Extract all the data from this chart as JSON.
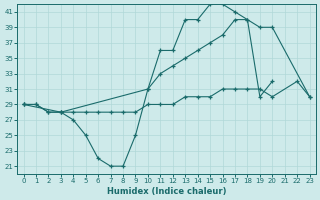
{
  "xlabel": "Humidex (Indice chaleur)",
  "bg_color": "#ceeaea",
  "line_color": "#1a6b6b",
  "grid_color": "#b0d8d8",
  "xlim": [
    -0.5,
    23.5
  ],
  "ylim": [
    20,
    42
  ],
  "yticks": [
    21,
    23,
    25,
    27,
    29,
    31,
    33,
    35,
    37,
    39,
    41
  ],
  "xticks": [
    0,
    1,
    2,
    3,
    4,
    5,
    6,
    7,
    8,
    9,
    10,
    11,
    12,
    13,
    14,
    15,
    16,
    17,
    18,
    19,
    20,
    21,
    22,
    23
  ],
  "curve1_x": [
    0,
    1,
    2,
    3,
    4,
    5,
    6,
    7,
    8,
    9,
    10,
    11,
    12,
    13,
    14,
    15,
    16,
    17,
    18,
    19,
    20
  ],
  "curve1_y": [
    29,
    29,
    28,
    28,
    27,
    25,
    22,
    21,
    21,
    25,
    31,
    36,
    36,
    40,
    40,
    42,
    42,
    41,
    40,
    30,
    32
  ],
  "curve2_x": [
    0,
    1,
    2,
    3,
    4,
    5,
    6,
    7,
    8,
    9,
    10,
    11,
    12,
    13,
    14,
    15,
    16,
    17,
    18,
    19,
    20,
    22,
    23
  ],
  "curve2_y": [
    29,
    29,
    28,
    28,
    28,
    28,
    28,
    28,
    28,
    28,
    29,
    29,
    29,
    30,
    30,
    30,
    31,
    31,
    31,
    31,
    30,
    32,
    30
  ],
  "curve3_x": [
    0,
    3,
    10,
    11,
    12,
    13,
    14,
    15,
    16,
    17,
    18,
    19,
    20,
    23
  ],
  "curve3_y": [
    29,
    28,
    31,
    33,
    34,
    35,
    36,
    37,
    38,
    40,
    40,
    39,
    39,
    30
  ]
}
